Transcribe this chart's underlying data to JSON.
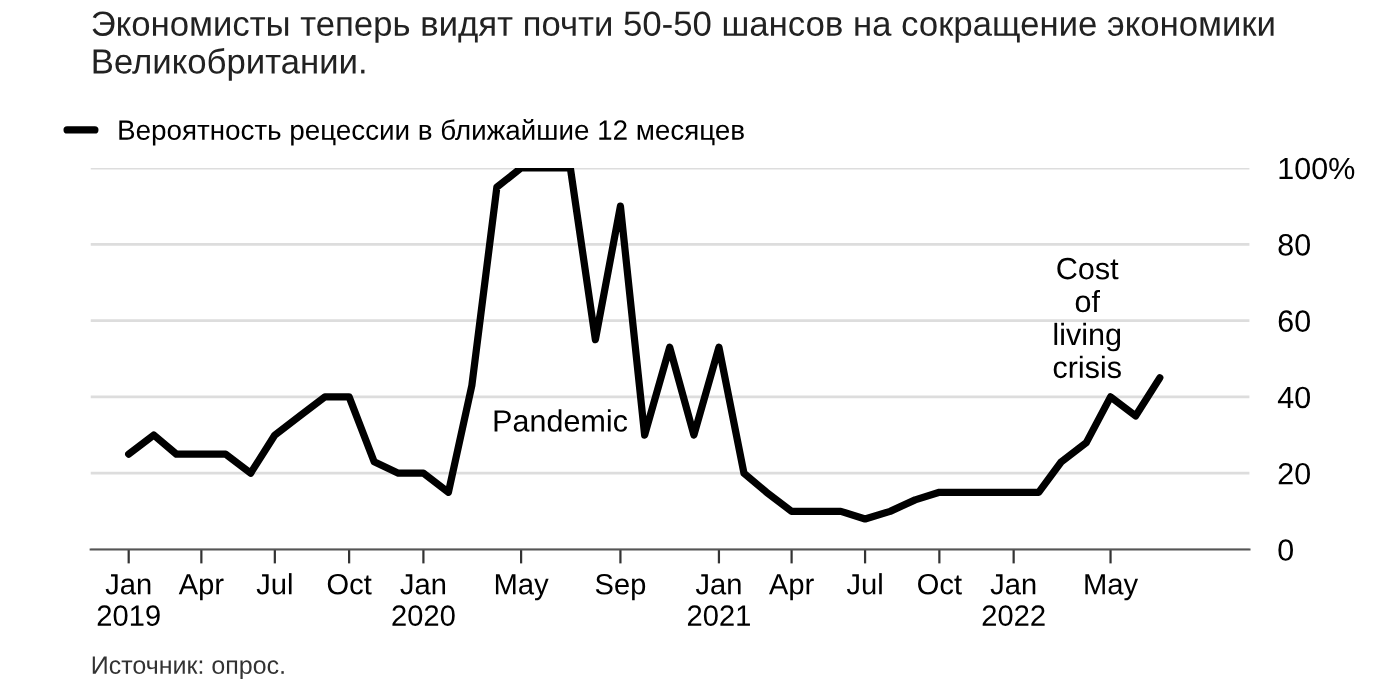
{
  "chart_data": {
    "type": "line",
    "title": "Экономисты теперь видят почти 50-50 шансов на сокращение экономики Великобритании.",
    "x": [
      "2019-01",
      "2019-02",
      "2019-03",
      "2019-04",
      "2019-05",
      "2019-06",
      "2019-07",
      "2019-08",
      "2019-09",
      "2019-10",
      "2019-11",
      "2019-12",
      "2020-01",
      "2020-02",
      "2020-03",
      "2020-04",
      "2020-05",
      "2020-06",
      "2020-07",
      "2020-08",
      "2020-09",
      "2020-10",
      "2020-11",
      "2020-12",
      "2021-01",
      "2021-02",
      "2021-03",
      "2021-04",
      "2021-05",
      "2021-06",
      "2021-07",
      "2021-08",
      "2021-09",
      "2021-10",
      "2021-11",
      "2021-12",
      "2022-01",
      "2022-02",
      "2022-03",
      "2022-04",
      "2022-05",
      "2022-06",
      "2022-07"
    ],
    "series": [
      {
        "name": "Вероятность рецессии в ближайшие 12 месяцев",
        "color": "#000000",
        "values": [
          25,
          30,
          25,
          25,
          25,
          20,
          30,
          35,
          40,
          40,
          23,
          20,
          20,
          15,
          43,
          95,
          100,
          100,
          100,
          55,
          90,
          30,
          53,
          30,
          53,
          20,
          15,
          10,
          10,
          10,
          8,
          10,
          13,
          15,
          15,
          15,
          15,
          15,
          23,
          28,
          40,
          35,
          45
        ]
      }
    ],
    "xlim": [
      "2018-11-15",
      "2022-10-20"
    ],
    "xticks": [
      {
        "value": "2019-01",
        "label": "Jan\n2019"
      },
      {
        "value": "2019-04",
        "label": "Apr"
      },
      {
        "value": "2019-07",
        "label": "Jul"
      },
      {
        "value": "2019-10",
        "label": "Oct"
      },
      {
        "value": "2020-01",
        "label": "Jan\n2020"
      },
      {
        "value": "2020-05",
        "label": "May"
      },
      {
        "value": "2020-09",
        "label": "Sep"
      },
      {
        "value": "2021-01",
        "label": "Jan\n2021"
      },
      {
        "value": "2021-04",
        "label": "Apr"
      },
      {
        "value": "2021-07",
        "label": "Jul"
      },
      {
        "value": "2021-10",
        "label": "Oct"
      },
      {
        "value": "2022-01",
        "label": "Jan\n2022"
      },
      {
        "value": "2022-05",
        "label": "May"
      }
    ],
    "ylim": [
      0,
      100
    ],
    "yticks": [
      0,
      20,
      40,
      60,
      80,
      {
        "value": 100,
        "label": "100%"
      }
    ],
    "grid": "y",
    "legend": "top left",
    "marker": "none",
    "line_style": "solid",
    "annotations": [
      "Pandemic",
      "Cost\nof\nliving\ncrisis",
      "Источник: опрос."
    ]
  }
}
